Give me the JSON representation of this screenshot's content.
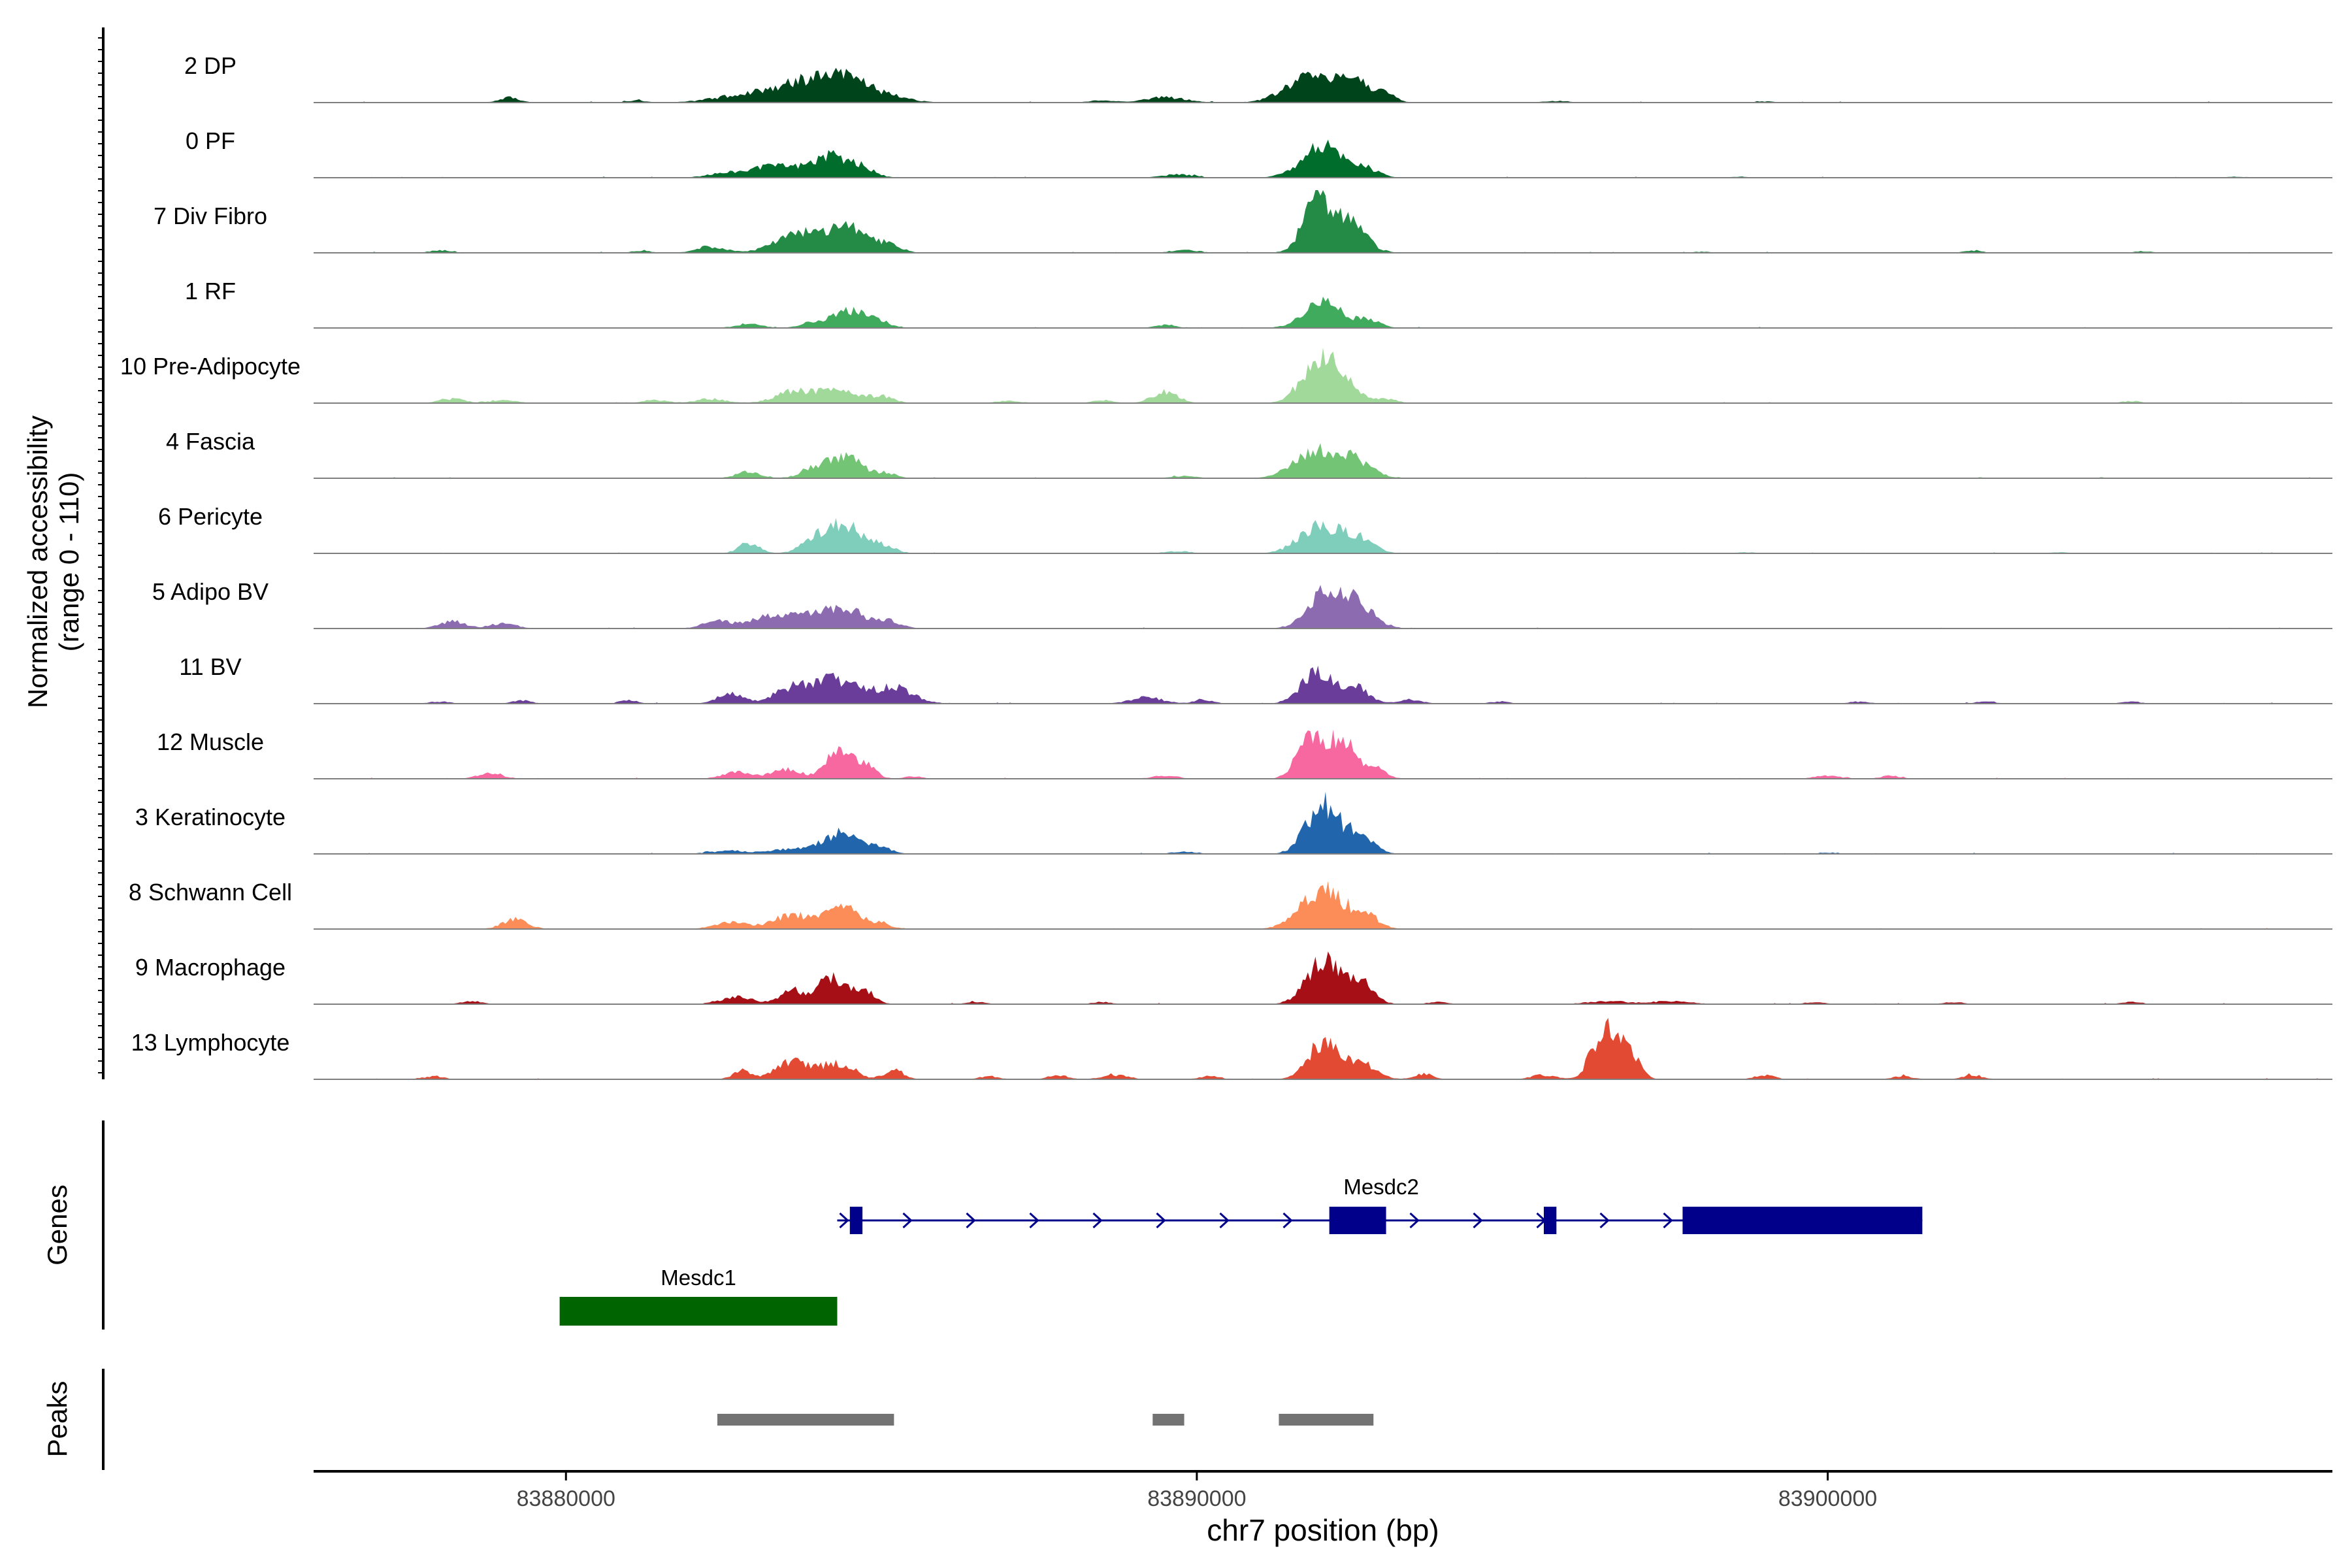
{
  "colors": {
    "axis": "#000000",
    "baseline": "#7f7f7f",
    "mesdc2": "#00008b",
    "mesdc1": "#006400",
    "peak": "#737373"
  },
  "chart_data": {
    "type": "area",
    "title": "",
    "ylabel_line1": "Normalized accessibility",
    "ylabel_line2": "(range 0 - 110)",
    "ylim": [
      0,
      110
    ],
    "xlabel": "chr7 position (bp)",
    "xlim": [
      83876000,
      83908000
    ],
    "x_ticks": [
      83880000,
      83890000,
      83900000
    ],
    "x_tick_labels": [
      "83880000",
      "83890000",
      "83900000"
    ],
    "tracks": [
      {
        "label": "2 DP",
        "color": "#00441b",
        "peaks": [
          [
            83879100,
            10,
            160
          ],
          [
            83881100,
            4,
            150
          ],
          [
            83882600,
            8,
            420
          ],
          [
            83883300,
            20,
            420
          ],
          [
            83884000,
            38,
            380
          ],
          [
            83884600,
            36,
            320
          ],
          [
            83885300,
            8,
            250
          ],
          [
            83888500,
            4,
            200
          ],
          [
            83889500,
            10,
            320
          ],
          [
            83891800,
            48,
            380
          ],
          [
            83892500,
            38,
            300
          ],
          [
            83893000,
            10,
            150
          ],
          [
            83895700,
            3,
            200
          ],
          [
            83899000,
            2,
            150
          ]
        ]
      },
      {
        "label": "0 PF",
        "color": "#006d2c",
        "peaks": [
          [
            83882700,
            10,
            380
          ],
          [
            83883400,
            20,
            340
          ],
          [
            83884200,
            40,
            300
          ],
          [
            83884700,
            14,
            200
          ],
          [
            83889700,
            6,
            250
          ],
          [
            83892000,
            58,
            330
          ],
          [
            83892700,
            14,
            200
          ],
          [
            83898600,
            2,
            150
          ],
          [
            83906500,
            2,
            150
          ]
        ]
      },
      {
        "label": "7 Div Fibro",
        "color": "#238b45",
        "peaks": [
          [
            83878000,
            5,
            150
          ],
          [
            83881200,
            4,
            150
          ],
          [
            83882300,
            12,
            230
          ],
          [
            83883600,
            34,
            320
          ],
          [
            83884400,
            50,
            340
          ],
          [
            83885100,
            14,
            200
          ],
          [
            83889800,
            6,
            200
          ],
          [
            83891900,
            95,
            220
          ],
          [
            83892400,
            62,
            260
          ],
          [
            83898000,
            2,
            150
          ],
          [
            83902300,
            4,
            150
          ],
          [
            83905000,
            3,
            150
          ]
        ]
      },
      {
        "label": "1 RF",
        "color": "#41ab5d",
        "peaks": [
          [
            83882900,
            8,
            200
          ],
          [
            83883900,
            10,
            180
          ],
          [
            83884500,
            34,
            260
          ],
          [
            83885000,
            10,
            150
          ],
          [
            83889500,
            6,
            160
          ],
          [
            83892000,
            46,
            300
          ],
          [
            83892700,
            14,
            200
          ]
        ]
      },
      {
        "label": "10 Pre-Adipocyte",
        "color": "#a1d99b",
        "peaks": [
          [
            83878200,
            8,
            200
          ],
          [
            83879000,
            6,
            200
          ],
          [
            83881400,
            6,
            200
          ],
          [
            83882300,
            8,
            240
          ],
          [
            83883600,
            22,
            280
          ],
          [
            83884300,
            24,
            300
          ],
          [
            83885000,
            12,
            200
          ],
          [
            83887000,
            4,
            200
          ],
          [
            83888500,
            6,
            150
          ],
          [
            83889500,
            22,
            200
          ],
          [
            83891900,
            72,
            260
          ],
          [
            83892300,
            40,
            230
          ],
          [
            83893000,
            8,
            160
          ],
          [
            83904800,
            4,
            150
          ]
        ]
      },
      {
        "label": "4 Fascia",
        "color": "#74c476",
        "peaks": [
          [
            83882900,
            12,
            200
          ],
          [
            83883900,
            12,
            200
          ],
          [
            83884400,
            40,
            300
          ],
          [
            83885100,
            8,
            150
          ],
          [
            83889800,
            4,
            200
          ],
          [
            83891900,
            50,
            350
          ],
          [
            83892500,
            30,
            280
          ]
        ]
      },
      {
        "label": "6 Pericyte",
        "color": "#7fcdbb",
        "peaks": [
          [
            83882900,
            20,
            160
          ],
          [
            83883900,
            22,
            200
          ],
          [
            83884400,
            58,
            260
          ],
          [
            83885000,
            16,
            200
          ],
          [
            83889700,
            4,
            200
          ],
          [
            83891900,
            48,
            300
          ],
          [
            83892500,
            32,
            260
          ],
          [
            83898700,
            2,
            150
          ],
          [
            83903700,
            2,
            150
          ]
        ]
      },
      {
        "label": "5 Adipo BV",
        "color": "#8c6bb1",
        "peaks": [
          [
            83878200,
            14,
            200
          ],
          [
            83879000,
            10,
            200
          ],
          [
            83882400,
            14,
            220
          ],
          [
            83883200,
            22,
            300
          ],
          [
            83884000,
            32,
            340
          ],
          [
            83884500,
            26,
            260
          ],
          [
            83885100,
            14,
            200
          ],
          [
            83892100,
            70,
            300
          ],
          [
            83892600,
            30,
            260
          ]
        ]
      },
      {
        "label": "11 BV",
        "color": "#6a3d9a",
        "peaks": [
          [
            83878000,
            4,
            150
          ],
          [
            83879300,
            6,
            150
          ],
          [
            83881000,
            6,
            150
          ],
          [
            83882600,
            18,
            200
          ],
          [
            83883600,
            28,
            300
          ],
          [
            83884300,
            44,
            340
          ],
          [
            83885200,
            30,
            300
          ],
          [
            83889200,
            12,
            250
          ],
          [
            83890100,
            8,
            150
          ],
          [
            83891900,
            60,
            250
          ],
          [
            83892500,
            30,
            230
          ],
          [
            83893400,
            8,
            160
          ],
          [
            83894800,
            4,
            150
          ],
          [
            83900500,
            4,
            150
          ],
          [
            83902500,
            4,
            150
          ],
          [
            83904800,
            4,
            150
          ]
        ]
      },
      {
        "label": "12 Muscle",
        "color": "#f768a1",
        "peaks": [
          [
            83878800,
            10,
            200
          ],
          [
            83882700,
            12,
            220
          ],
          [
            83883500,
            18,
            250
          ],
          [
            83884300,
            56,
            170
          ],
          [
            83884700,
            30,
            180
          ],
          [
            83885500,
            4,
            150
          ],
          [
            83889500,
            6,
            200
          ],
          [
            83891800,
            80,
            200
          ],
          [
            83892300,
            76,
            200
          ],
          [
            83892800,
            20,
            180
          ],
          [
            83900000,
            6,
            200
          ],
          [
            83901000,
            6,
            150
          ]
        ]
      },
      {
        "label": "3 Keratinocyte",
        "color": "#2166ac",
        "peaks": [
          [
            83882600,
            6,
            300
          ],
          [
            83883600,
            10,
            300
          ],
          [
            83884400,
            40,
            300
          ],
          [
            83885000,
            10,
            160
          ],
          [
            83889800,
            4,
            200
          ],
          [
            83892000,
            94,
            260
          ],
          [
            83892600,
            34,
            200
          ],
          [
            83900000,
            2,
            150
          ]
        ]
      },
      {
        "label": "8 Schwann Cell",
        "color": "#fc8d59",
        "peaks": [
          [
            83879200,
            18,
            200
          ],
          [
            83882600,
            12,
            260
          ],
          [
            83883600,
            26,
            320
          ],
          [
            83884400,
            40,
            260
          ],
          [
            83885000,
            10,
            160
          ],
          [
            83892000,
            76,
            340
          ],
          [
            83892700,
            20,
            200
          ]
        ]
      },
      {
        "label": "9 Macrophage",
        "color": "#a50f15",
        "peaks": [
          [
            83878500,
            6,
            150
          ],
          [
            83882700,
            14,
            250
          ],
          [
            83883600,
            26,
            200
          ],
          [
            83884200,
            50,
            200
          ],
          [
            83884700,
            30,
            170
          ],
          [
            83886500,
            4,
            150
          ],
          [
            83888500,
            4,
            150
          ],
          [
            83892000,
            82,
            260
          ],
          [
            83892600,
            40,
            200
          ],
          [
            83893800,
            4,
            150
          ],
          [
            83896500,
            6,
            300
          ],
          [
            83897500,
            6,
            300
          ],
          [
            83899800,
            4,
            150
          ],
          [
            83902000,
            4,
            150
          ],
          [
            83904800,
            4,
            150
          ]
        ]
      },
      {
        "label": "13 Lymphocyte",
        "color": "#e34a33",
        "peaks": [
          [
            83877900,
            6,
            150
          ],
          [
            83882800,
            16,
            150
          ],
          [
            83883600,
            36,
            250
          ],
          [
            83884300,
            30,
            250
          ],
          [
            83885200,
            18,
            150
          ],
          [
            83886700,
            6,
            150
          ],
          [
            83887800,
            8,
            150
          ],
          [
            83888700,
            8,
            200
          ],
          [
            83890200,
            6,
            150
          ],
          [
            83892000,
            70,
            230
          ],
          [
            83892600,
            30,
            230
          ],
          [
            83893600,
            10,
            150
          ],
          [
            83895500,
            8,
            200
          ],
          [
            83896300,
            50,
            140
          ],
          [
            83896600,
            90,
            140
          ],
          [
            83896900,
            40,
            140
          ],
          [
            83899000,
            8,
            150
          ],
          [
            83901200,
            6,
            150
          ],
          [
            83902300,
            8,
            150
          ]
        ]
      }
    ],
    "genes": {
      "axis_label": "Genes",
      "items": [
        {
          "name": "Mesdc2",
          "strand": "+",
          "start": 83884300,
          "end": 83901500,
          "exons": [
            [
              83884500,
              83884700
            ],
            [
              83892100,
              83893000
            ],
            [
              83895500,
              83895700
            ],
            [
              83897700,
              83901500
            ]
          ],
          "color": "#00008b"
        },
        {
          "name": "Mesdc1",
          "strand": "",
          "start": 83879900,
          "end": 83884300,
          "exons": [
            [
              83879900,
              83884300
            ]
          ],
          "color": "#006400"
        }
      ]
    },
    "peaks_track": {
      "axis_label": "Peaks",
      "regions": [
        [
          83882400,
          83885200
        ],
        [
          83889300,
          83889800
        ],
        [
          83891300,
          83892800
        ]
      ]
    }
  }
}
